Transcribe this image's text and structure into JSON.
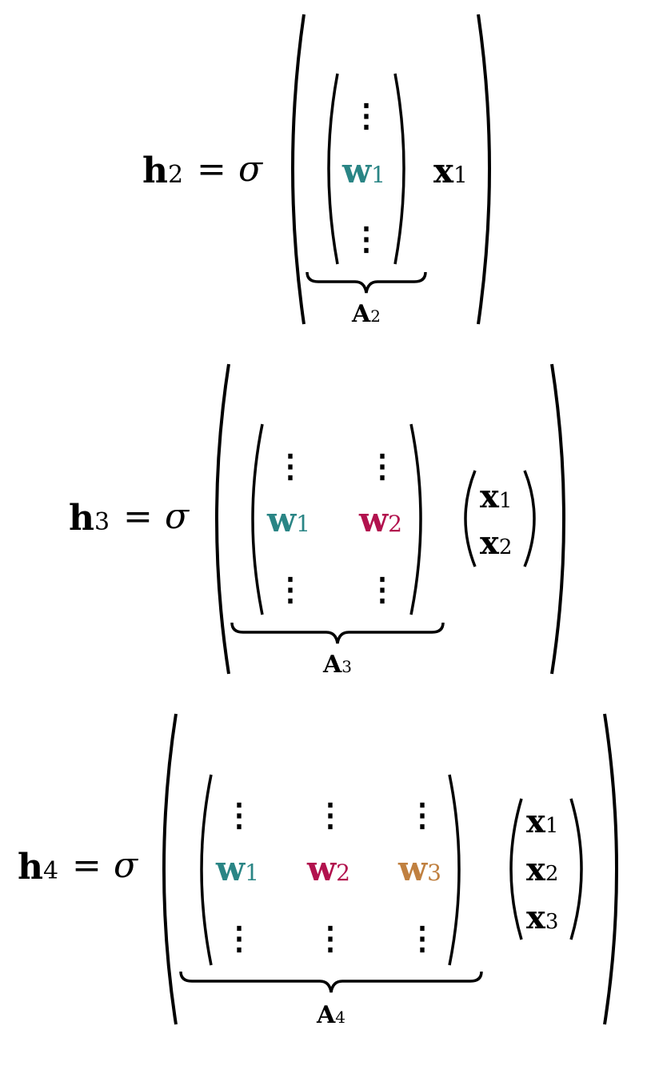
{
  "colors": {
    "ink": "#000000",
    "w1": "#2a8585",
    "w2": "#b2124e",
    "w3": "#c08040"
  },
  "symbols": {
    "equals": "=",
    "sigma": "σ",
    "vdots": "⋮"
  },
  "equations": [
    {
      "lhs": {
        "base": "h",
        "sub": "2"
      },
      "columns": [
        {
          "base": "w",
          "sub": "1",
          "color": "w1"
        }
      ],
      "brace_label": {
        "base": "A",
        "sub": "2"
      },
      "inputs": [
        {
          "base": "x",
          "sub": "1"
        }
      ]
    },
    {
      "lhs": {
        "base": "h",
        "sub": "3"
      },
      "columns": [
        {
          "base": "w",
          "sub": "1",
          "color": "w1"
        },
        {
          "base": "w",
          "sub": "2",
          "color": "w2"
        }
      ],
      "brace_label": {
        "base": "A",
        "sub": "3"
      },
      "inputs": [
        {
          "base": "x",
          "sub": "1"
        },
        {
          "base": "x",
          "sub": "2"
        }
      ]
    },
    {
      "lhs": {
        "base": "h",
        "sub": "4"
      },
      "columns": [
        {
          "base": "w",
          "sub": "1",
          "color": "w1"
        },
        {
          "base": "w",
          "sub": "2",
          "color": "w2"
        },
        {
          "base": "w",
          "sub": "3",
          "color": "w3"
        }
      ],
      "brace_label": {
        "base": "A",
        "sub": "4"
      },
      "inputs": [
        {
          "base": "x",
          "sub": "1"
        },
        {
          "base": "x",
          "sub": "2"
        },
        {
          "base": "x",
          "sub": "3"
        }
      ]
    }
  ]
}
